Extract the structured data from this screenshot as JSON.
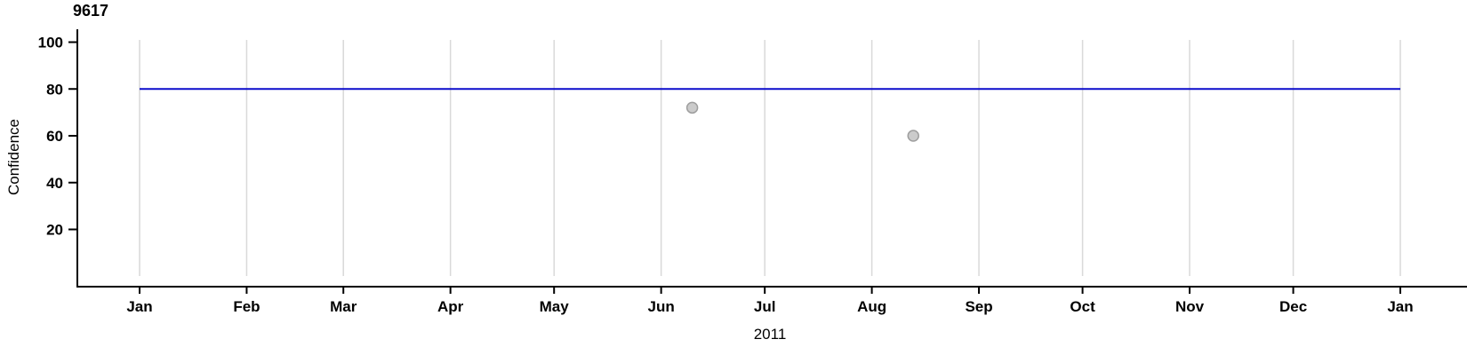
{
  "chart_data": {
    "type": "scatter",
    "title": "9617",
    "xlabel": "2011",
    "ylabel": "Confidence",
    "x_axis": {
      "tick_labels": [
        "Jan",
        "Feb",
        "Mar",
        "Apr",
        "May",
        "Jun",
        "Jul",
        "Aug",
        "Sep",
        "Oct",
        "Nov",
        "Dec",
        "Jan"
      ],
      "tick_day_of_year": [
        0,
        31,
        59,
        90,
        120,
        151,
        181,
        212,
        243,
        273,
        304,
        334,
        365
      ],
      "range_days": [
        0,
        365
      ],
      "grid": true
    },
    "y_axis": {
      "tick_values": [
        100,
        80,
        60,
        40,
        20
      ],
      "range": [
        0,
        105
      ],
      "grid": false
    },
    "points": [
      {
        "x_day_of_year": 160,
        "y": 72
      },
      {
        "x_day_of_year": 224,
        "y": 60
      }
    ],
    "reference_line": {
      "y": 80,
      "x_span_days": [
        0,
        365
      ]
    },
    "legend_position": "none",
    "colors": {
      "reference_line": "#0b0bcc",
      "point_fill": "#cbcbcb",
      "point_stroke": "#9e9e9e",
      "grid": "#d9d9d9",
      "axis": "#000000",
      "text": "#000000"
    }
  }
}
